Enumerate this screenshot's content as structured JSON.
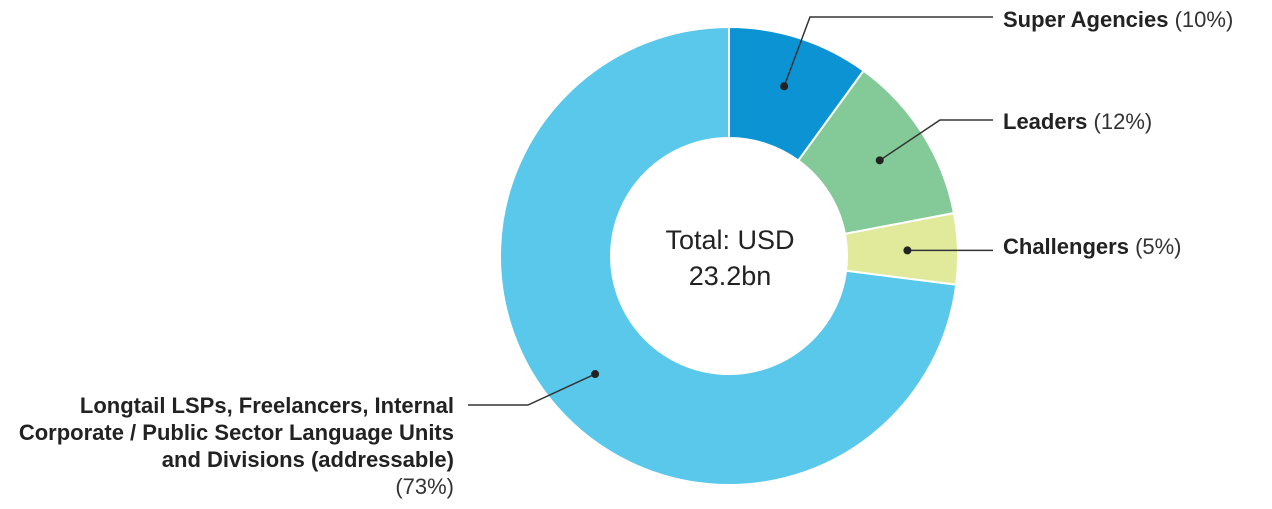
{
  "chart_data": {
    "type": "pie",
    "donut": true,
    "center_label_line1": "Total: USD",
    "center_label_line2": "23.2bn",
    "slices": [
      {
        "name": "Super Agencies",
        "pct_label": "(10%)",
        "value": 10,
        "color": "#0c93d3"
      },
      {
        "name": "Leaders",
        "pct_label": "(12%)",
        "value": 12,
        "color": "#84c998"
      },
      {
        "name": "Challengers",
        "pct_label": "(5%)",
        "value": 5,
        "color": "#e1e99b"
      },
      {
        "name": "Longtail LSPs, Freelancers, Internal Corporate / Public Sector Language Units and Divisions (addressable)",
        "pct_label": "(73%)",
        "value": 73,
        "color": "#5ac8ea"
      }
    ],
    "legend": "callouts"
  }
}
